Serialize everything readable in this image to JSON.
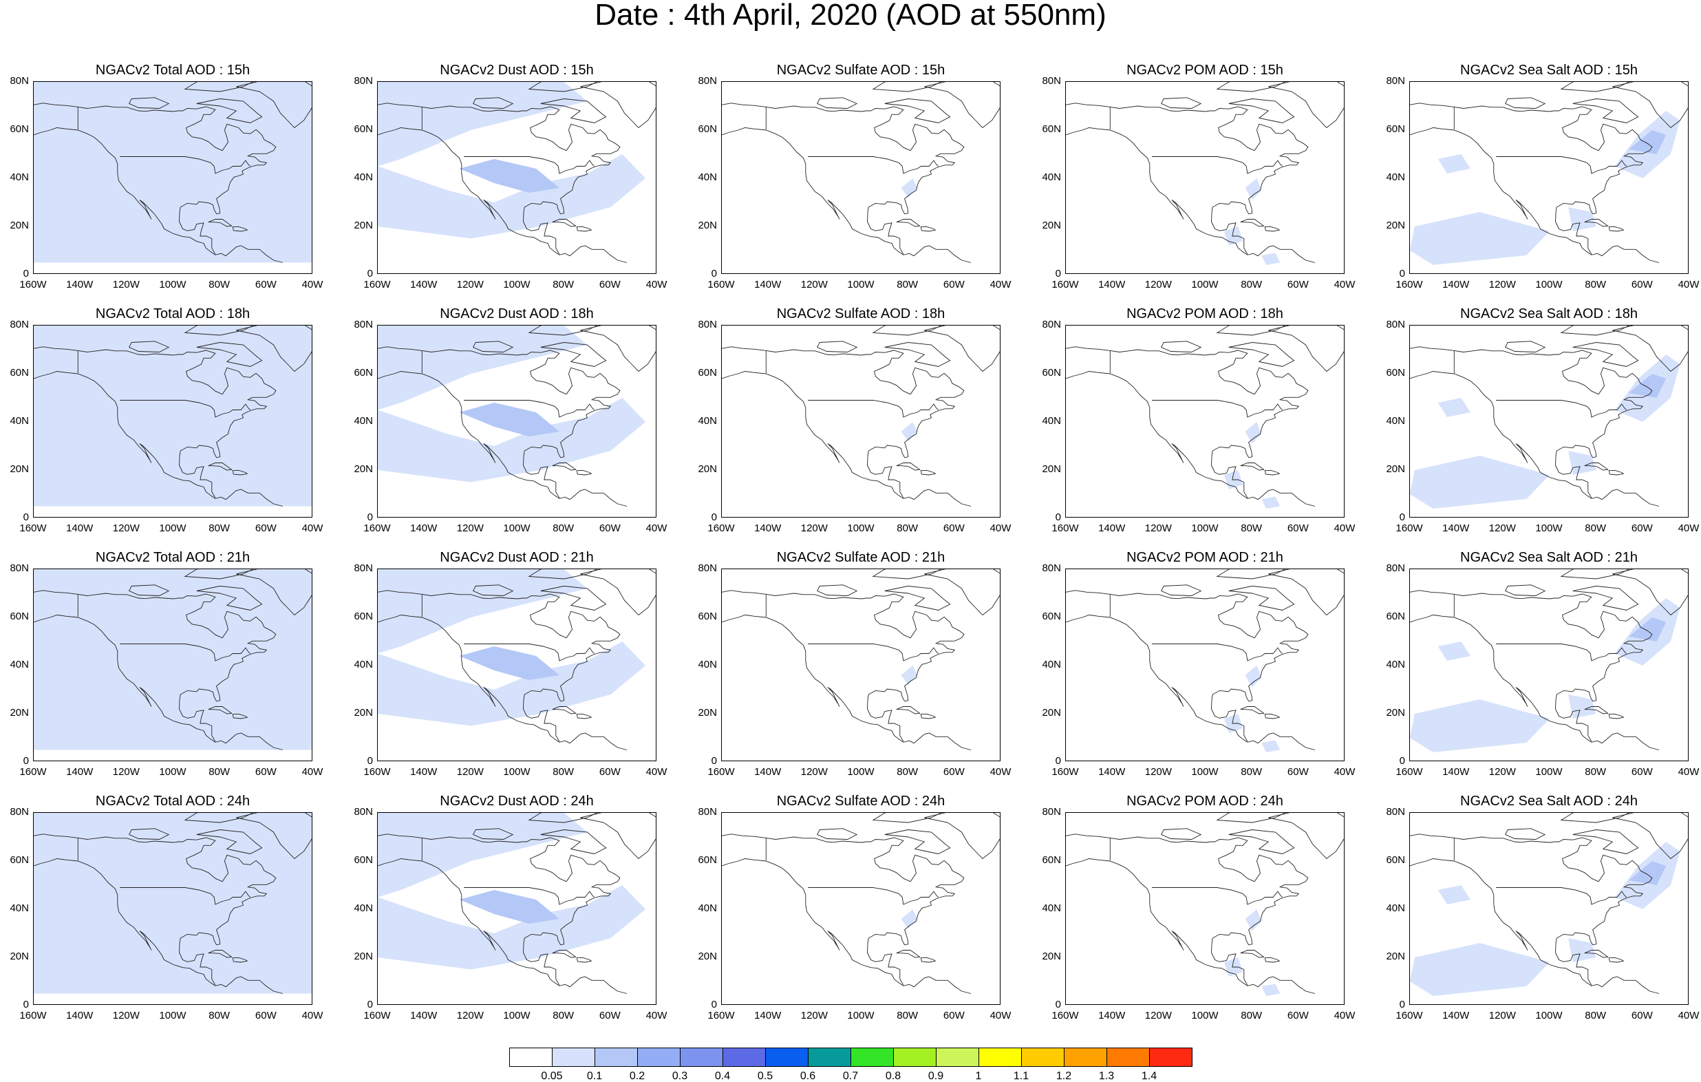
{
  "title": "Date : 4th April, 2020 (AOD at 550nm)",
  "axes": {
    "lat_ticks": [
      "80N",
      "60N",
      "40N",
      "20N",
      "0"
    ],
    "lon_ticks": [
      "160W",
      "140W",
      "120W",
      "100W",
      "80W",
      "60W",
      "40W"
    ],
    "lat_range": [
      0,
      80
    ],
    "lon_range": [
      -160,
      -40
    ]
  },
  "panels": [
    {
      "title": "NGACv2 Total AOD : 15h",
      "species": "total",
      "hour": "15h"
    },
    {
      "title": "NGACv2 Dust AOD : 15h",
      "species": "dust",
      "hour": "15h"
    },
    {
      "title": "NGACv2 Sulfate AOD : 15h",
      "species": "sulfate",
      "hour": "15h"
    },
    {
      "title": "NGACv2 POM AOD : 15h",
      "species": "pom",
      "hour": "15h"
    },
    {
      "title": "NGACv2 Sea Salt AOD : 15h",
      "species": "seasalt",
      "hour": "15h"
    },
    {
      "title": "NGACv2 Total AOD : 18h",
      "species": "total",
      "hour": "18h"
    },
    {
      "title": "NGACv2 Dust AOD : 18h",
      "species": "dust",
      "hour": "18h"
    },
    {
      "title": "NGACv2 Sulfate AOD : 18h",
      "species": "sulfate",
      "hour": "18h"
    },
    {
      "title": "NGACv2 POM AOD : 18h",
      "species": "pom",
      "hour": "18h"
    },
    {
      "title": "NGACv2 Sea Salt AOD : 18h",
      "species": "seasalt",
      "hour": "18h"
    },
    {
      "title": "NGACv2 Total AOD : 21h",
      "species": "total",
      "hour": "21h"
    },
    {
      "title": "NGACv2 Dust AOD : 21h",
      "species": "dust",
      "hour": "21h"
    },
    {
      "title": "NGACv2 Sulfate AOD : 21h",
      "species": "sulfate",
      "hour": "21h"
    },
    {
      "title": "NGACv2 POM AOD : 21h",
      "species": "pom",
      "hour": "21h"
    },
    {
      "title": "NGACv2 Sea Salt AOD : 21h",
      "species": "seasalt",
      "hour": "21h"
    },
    {
      "title": "NGACv2 Total AOD : 24h",
      "species": "total",
      "hour": "24h"
    },
    {
      "title": "NGACv2 Dust AOD : 24h",
      "species": "dust",
      "hour": "24h"
    },
    {
      "title": "NGACv2 Sulfate AOD : 24h",
      "species": "sulfate",
      "hour": "24h"
    },
    {
      "title": "NGACv2 POM AOD : 24h",
      "species": "pom",
      "hour": "24h"
    },
    {
      "title": "NGACv2 Sea Salt  AOD : 24h",
      "species": "seasalt",
      "hour": "24h"
    }
  ],
  "colorbar": {
    "colors": [
      "#ffffff",
      "#d6e2fb",
      "#b4c8f7",
      "#93aef5",
      "#7c93ef",
      "#5d6ae6",
      "#0a5ef0",
      "#079a9a",
      "#33e526",
      "#a3f023",
      "#cdf55a",
      "#ffff00",
      "#ffcc00",
      "#ffa200",
      "#ff7a00",
      "#ff2a12"
    ],
    "labels": [
      "0.05",
      "0.1",
      "0.2",
      "0.3",
      "0.4",
      "0.5",
      "0.6",
      "0.7",
      "0.8",
      "0.9",
      "1",
      "1.1",
      "1.2",
      "1.3",
      "1.4"
    ]
  },
  "colors": {
    "low_aod": "#d6e2fb",
    "mid_aod": "#b4c8f7",
    "high_aod": "#93aef5"
  }
}
